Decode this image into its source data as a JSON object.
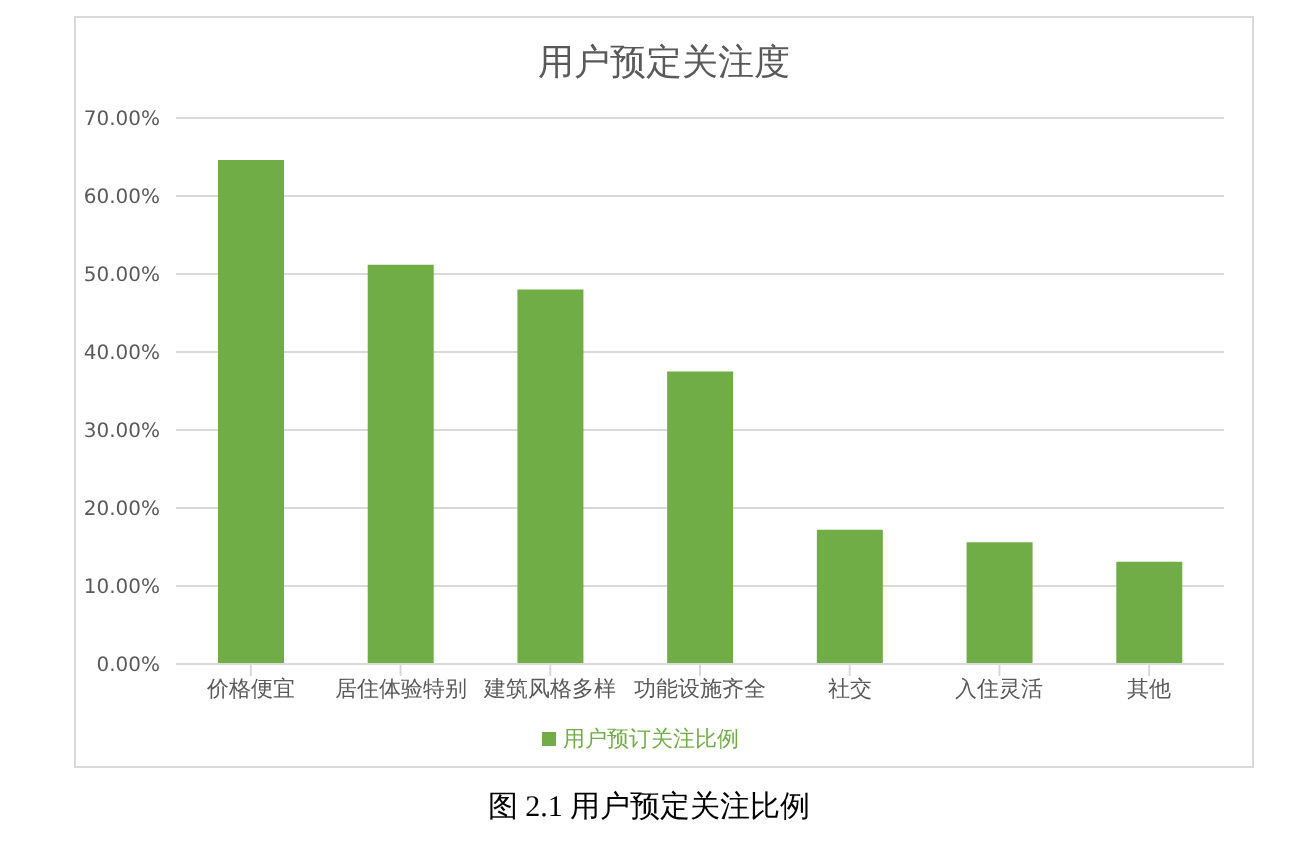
{
  "chart_data": {
    "type": "bar",
    "title": "用户预定关注度",
    "categories": [
      "价格便宜",
      "居住体验特别",
      "建筑风格多样",
      "功能设施齐全",
      "社交",
      "入住灵活",
      "其他"
    ],
    "series": [
      {
        "name": "用户预订关注比例",
        "color": "#70ad47",
        "values": [
          64.6,
          51.2,
          48.0,
          37.5,
          17.2,
          15.6,
          13.1
        ]
      }
    ],
    "ylim": [
      0,
      70
    ],
    "yticks": [
      {
        "value": 0,
        "label": "0.00%"
      },
      {
        "value": 10,
        "label": "10.00%"
      },
      {
        "value": 20,
        "label": "20.00%"
      },
      {
        "value": 30,
        "label": "30.00%"
      },
      {
        "value": 40,
        "label": "40.00%"
      },
      {
        "value": 50,
        "label": "50.00%"
      },
      {
        "value": 60,
        "label": "60.00%"
      },
      {
        "value": 70,
        "label": "70.00%"
      }
    ],
    "grid": "y",
    "legend": "bottom",
    "annotations": [
      "图 2.1  用户预定关注比例"
    ]
  }
}
